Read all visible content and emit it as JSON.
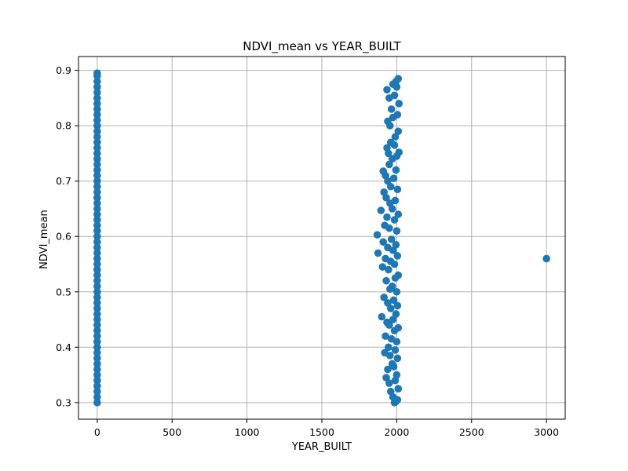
{
  "chart_data": {
    "type": "scatter",
    "title": "NDVI_mean vs YEAR_BUILT",
    "xlabel": "YEAR_BUILT",
    "ylabel": "NDVI_mean",
    "xlim": [
      -125,
      3125
    ],
    "ylim": [
      0.27,
      0.925
    ],
    "xticks": [
      0,
      500,
      1000,
      1500,
      2000,
      2500,
      3000
    ],
    "xtick_labels": [
      "0",
      "500",
      "1000",
      "1500",
      "2000",
      "2500",
      "3000"
    ],
    "yticks": [
      0.3,
      0.4,
      0.5,
      0.6,
      0.7,
      0.8,
      0.9
    ],
    "ytick_labels": [
      "0.3",
      "0.4",
      "0.5",
      "0.6",
      "0.7",
      "0.8",
      "0.9"
    ],
    "grid": true,
    "marker_color": "#1f77b4",
    "series": [
      {
        "points": [
          {
            "x": 0,
            "y": 0.3
          },
          {
            "x": 0,
            "y": 0.31
          },
          {
            "x": 0,
            "y": 0.32
          },
          {
            "x": 0,
            "y": 0.33
          },
          {
            "x": 0,
            "y": 0.34
          },
          {
            "x": 0,
            "y": 0.35
          },
          {
            "x": 0,
            "y": 0.36
          },
          {
            "x": 0,
            "y": 0.37
          },
          {
            "x": 0,
            "y": 0.38
          },
          {
            "x": 0,
            "y": 0.39
          },
          {
            "x": 0,
            "y": 0.4
          },
          {
            "x": 0,
            "y": 0.41
          },
          {
            "x": 0,
            "y": 0.42
          },
          {
            "x": 0,
            "y": 0.43
          },
          {
            "x": 0,
            "y": 0.44
          },
          {
            "x": 0,
            "y": 0.45
          },
          {
            "x": 0,
            "y": 0.46
          },
          {
            "x": 0,
            "y": 0.47
          },
          {
            "x": 0,
            "y": 0.48
          },
          {
            "x": 0,
            "y": 0.49
          },
          {
            "x": 0,
            "y": 0.5
          },
          {
            "x": 0,
            "y": 0.51
          },
          {
            "x": 0,
            "y": 0.52
          },
          {
            "x": 0,
            "y": 0.53
          },
          {
            "x": 0,
            "y": 0.54
          },
          {
            "x": 0,
            "y": 0.55
          },
          {
            "x": 0,
            "y": 0.56
          },
          {
            "x": 0,
            "y": 0.57
          },
          {
            "x": 0,
            "y": 0.58
          },
          {
            "x": 0,
            "y": 0.59
          },
          {
            "x": 0,
            "y": 0.6
          },
          {
            "x": 0,
            "y": 0.61
          },
          {
            "x": 0,
            "y": 0.62
          },
          {
            "x": 0,
            "y": 0.63
          },
          {
            "x": 0,
            "y": 0.64
          },
          {
            "x": 0,
            "y": 0.65
          },
          {
            "x": 0,
            "y": 0.66
          },
          {
            "x": 0,
            "y": 0.67
          },
          {
            "x": 0,
            "y": 0.68
          },
          {
            "x": 0,
            "y": 0.69
          },
          {
            "x": 0,
            "y": 0.7
          },
          {
            "x": 0,
            "y": 0.71
          },
          {
            "x": 0,
            "y": 0.72
          },
          {
            "x": 0,
            "y": 0.73
          },
          {
            "x": 0,
            "y": 0.74
          },
          {
            "x": 0,
            "y": 0.75
          },
          {
            "x": 0,
            "y": 0.76
          },
          {
            "x": 0,
            "y": 0.77
          },
          {
            "x": 0,
            "y": 0.78
          },
          {
            "x": 0,
            "y": 0.79
          },
          {
            "x": 0,
            "y": 0.8
          },
          {
            "x": 0,
            "y": 0.81
          },
          {
            "x": 0,
            "y": 0.82
          },
          {
            "x": 0,
            "y": 0.83
          },
          {
            "x": 0,
            "y": 0.84
          },
          {
            "x": 0,
            "y": 0.85
          },
          {
            "x": 0,
            "y": 0.86
          },
          {
            "x": 0,
            "y": 0.87
          },
          {
            "x": 0,
            "y": 0.88
          },
          {
            "x": 0,
            "y": 0.89
          },
          {
            "x": 0,
            "y": 0.895
          },
          {
            "x": 1985,
            "y": 0.3
          },
          {
            "x": 1995,
            "y": 0.302
          },
          {
            "x": 2005,
            "y": 0.305
          },
          {
            "x": 1975,
            "y": 0.31
          },
          {
            "x": 1960,
            "y": 0.32
          },
          {
            "x": 2010,
            "y": 0.325
          },
          {
            "x": 1950,
            "y": 0.335
          },
          {
            "x": 1990,
            "y": 0.34
          },
          {
            "x": 1930,
            "y": 0.345
          },
          {
            "x": 2000,
            "y": 0.35
          },
          {
            "x": 1940,
            "y": 0.36
          },
          {
            "x": 1980,
            "y": 0.365
          },
          {
            "x": 1970,
            "y": 0.37
          },
          {
            "x": 2005,
            "y": 0.38
          },
          {
            "x": 1955,
            "y": 0.385
          },
          {
            "x": 1920,
            "y": 0.39
          },
          {
            "x": 1990,
            "y": 0.395
          },
          {
            "x": 1945,
            "y": 0.4
          },
          {
            "x": 2000,
            "y": 0.41
          },
          {
            "x": 1965,
            "y": 0.415
          },
          {
            "x": 1925,
            "y": 0.42
          },
          {
            "x": 1985,
            "y": 0.43
          },
          {
            "x": 2010,
            "y": 0.435
          },
          {
            "x": 1950,
            "y": 0.44
          },
          {
            "x": 1935,
            "y": 0.445
          },
          {
            "x": 1975,
            "y": 0.45
          },
          {
            "x": 1900,
            "y": 0.455
          },
          {
            "x": 1995,
            "y": 0.46
          },
          {
            "x": 1960,
            "y": 0.47
          },
          {
            "x": 2005,
            "y": 0.475
          },
          {
            "x": 1940,
            "y": 0.48
          },
          {
            "x": 1980,
            "y": 0.485
          },
          {
            "x": 1915,
            "y": 0.49
          },
          {
            "x": 2000,
            "y": 0.5
          },
          {
            "x": 1955,
            "y": 0.505
          },
          {
            "x": 1970,
            "y": 0.51
          },
          {
            "x": 1930,
            "y": 0.52
          },
          {
            "x": 1990,
            "y": 0.525
          },
          {
            "x": 2010,
            "y": 0.53
          },
          {
            "x": 1945,
            "y": 0.54
          },
          {
            "x": 1905,
            "y": 0.545
          },
          {
            "x": 1985,
            "y": 0.55
          },
          {
            "x": 1960,
            "y": 0.555
          },
          {
            "x": 1925,
            "y": 0.56
          },
          {
            "x": 2005,
            "y": 0.565
          },
          {
            "x": 1875,
            "y": 0.57
          },
          {
            "x": 1975,
            "y": 0.575
          },
          {
            "x": 1940,
            "y": 0.58
          },
          {
            "x": 1995,
            "y": 0.585
          },
          {
            "x": 1910,
            "y": 0.59
          },
          {
            "x": 1965,
            "y": 0.595
          },
          {
            "x": 1870,
            "y": 0.603
          },
          {
            "x": 2000,
            "y": 0.61
          },
          {
            "x": 1950,
            "y": 0.615
          },
          {
            "x": 1920,
            "y": 0.62
          },
          {
            "x": 1985,
            "y": 0.63
          },
          {
            "x": 1935,
            "y": 0.635
          },
          {
            "x": 2010,
            "y": 0.64
          },
          {
            "x": 1895,
            "y": 0.647
          },
          {
            "x": 1970,
            "y": 0.65
          },
          {
            "x": 1955,
            "y": 0.66
          },
          {
            "x": 1990,
            "y": 0.665
          },
          {
            "x": 1930,
            "y": 0.67
          },
          {
            "x": 1915,
            "y": 0.68
          },
          {
            "x": 2005,
            "y": 0.685
          },
          {
            "x": 1960,
            "y": 0.69
          },
          {
            "x": 1940,
            "y": 0.7
          },
          {
            "x": 1980,
            "y": 0.705
          },
          {
            "x": 1925,
            "y": 0.71
          },
          {
            "x": 1910,
            "y": 0.718
          },
          {
            "x": 1995,
            "y": 0.72
          },
          {
            "x": 1950,
            "y": 0.73
          },
          {
            "x": 1970,
            "y": 0.74
          },
          {
            "x": 2000,
            "y": 0.745
          },
          {
            "x": 1945,
            "y": 0.75
          },
          {
            "x": 2015,
            "y": 0.752
          },
          {
            "x": 1935,
            "y": 0.76
          },
          {
            "x": 1985,
            "y": 0.765
          },
          {
            "x": 1960,
            "y": 0.77
          },
          {
            "x": 1990,
            "y": 0.78
          },
          {
            "x": 2010,
            "y": 0.79
          },
          {
            "x": 1955,
            "y": 0.8
          },
          {
            "x": 1940,
            "y": 0.808
          },
          {
            "x": 1975,
            "y": 0.815
          },
          {
            "x": 2005,
            "y": 0.82
          },
          {
            "x": 1965,
            "y": 0.83
          },
          {
            "x": 2015,
            "y": 0.84
          },
          {
            "x": 1950,
            "y": 0.85
          },
          {
            "x": 1985,
            "y": 0.855
          },
          {
            "x": 1935,
            "y": 0.865
          },
          {
            "x": 2000,
            "y": 0.87
          },
          {
            "x": 1975,
            "y": 0.875
          },
          {
            "x": 1995,
            "y": 0.88
          },
          {
            "x": 2010,
            "y": 0.885
          },
          {
            "x": 3000,
            "y": 0.56
          }
        ]
      }
    ]
  }
}
